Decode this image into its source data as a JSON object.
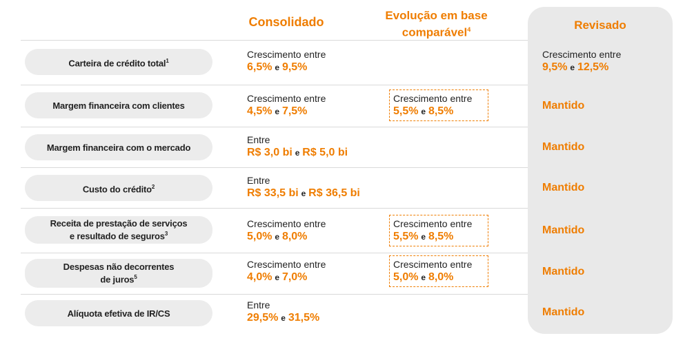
{
  "headers": {
    "consolidado": "Consolidado",
    "evolucao_line1": "Evolução em base",
    "evolucao_line2": "comparável",
    "evolucao_sup": "4",
    "revisado": "Revisado"
  },
  "rows": [
    {
      "label": "Carteira de crédito total",
      "sup": "1",
      "cons_prefix": "Crescimento entre",
      "cons_low": "6,5%",
      "conj": "e",
      "cons_high": "9,5%",
      "rev_prefix": "Crescimento entre",
      "rev_low": "9,5%",
      "rev_high": "12,5%"
    },
    {
      "label": "Margem financeira com clientes",
      "cons_prefix": "Crescimento entre",
      "cons_low": "4,5%",
      "conj": "e",
      "cons_high": "7,5%",
      "evol_prefix": "Crescimento entre",
      "evol_low": "5,5%",
      "evol_high": "8,5%",
      "rev": "Mantido"
    },
    {
      "label": "Margem financeira com o mercado",
      "cons_prefix": "Entre",
      "cons_low": "R$ 3,0 bi",
      "conj": "e",
      "cons_high": "R$ 5,0 bi",
      "rev": "Mantido"
    },
    {
      "label": "Custo do crédito",
      "sup": "2",
      "cons_prefix": "Entre",
      "cons_low": "R$ 33,5 bi",
      "conj": "e",
      "cons_high": "R$ 36,5 bi",
      "rev": "Mantido"
    },
    {
      "label_line1": "Receita de prestação de serviços",
      "label_line2": "e resultado de seguros",
      "sup": "3",
      "cons_prefix": "Crescimento entre",
      "cons_low": "5,0%",
      "conj": "e",
      "cons_high": "8,0%",
      "evol_prefix": "Crescimento entre",
      "evol_low": "5,5%",
      "evol_high": "8,5%",
      "rev": "Mantido"
    },
    {
      "label_line1": "Despesas não decorrentes",
      "label_line2": "de juros",
      "sup": "5",
      "cons_prefix": "Crescimento entre",
      "cons_low": "4,0%",
      "conj": "e",
      "cons_high": "7,0%",
      "evol_prefix": "Crescimento entre",
      "evol_low": "5,0%",
      "evol_high": "8,0%",
      "rev": "Mantido"
    },
    {
      "label": "Alíquota efetiva de IR/CS",
      "cons_prefix": "Entre",
      "cons_low": "29,5%",
      "conj": "e",
      "cons_high": "31,5%",
      "rev": "Mantido"
    }
  ],
  "colors": {
    "accent": "#ef7d00",
    "pill": "#ececec",
    "revised_bg": "#e9e9e9"
  }
}
